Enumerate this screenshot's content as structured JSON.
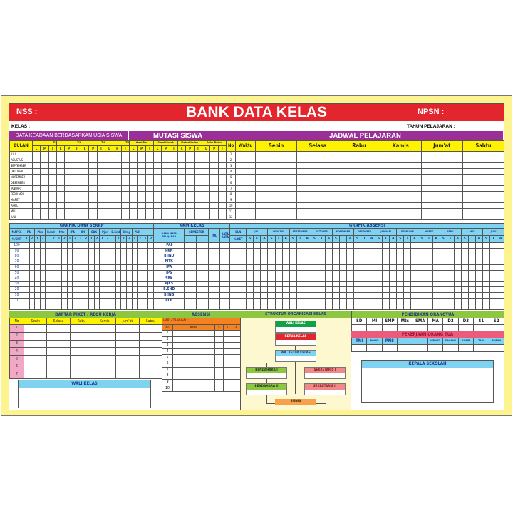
{
  "header": {
    "title": "BANK DATA KELAS",
    "nss_label": "NSS :",
    "npsn_label": "NPSN :",
    "kelas_label": "KELAS :",
    "tahun_label": "TAHUN PELAJARAN :"
  },
  "sections": {
    "usia": "DATA KEADAAN BERDASARKAN USIA SISWA",
    "mutasi": "MUTASI SISWA",
    "jadwal": "JADWAL PELAJARAN"
  },
  "usia_table": {
    "bulan_label": "BULAN",
    "groups": [
      "TH",
      "TH",
      "TH",
      "TH",
      "Awal Bln",
      "Mulai Masuk",
      "Mutasi Keluar",
      "Akhir Bulan"
    ],
    "sub": [
      "L",
      "P",
      "J"
    ],
    "months": [
      "JULI",
      "AGUSTUS",
      "SEPTEMBER",
      "OKTOBER",
      "NOPEMBER",
      "DESEMBER",
      "JANUARI",
      "FEBRUARI",
      "MARET",
      "APRIL",
      "MEI",
      "JUNI"
    ]
  },
  "jadwal": {
    "no_label": "No",
    "waktu_label": "Waktu",
    "days": [
      "Senin",
      "Selasa",
      "Rabu",
      "Kamis",
      "Jum'at",
      "Sabtu"
    ],
    "rows": [
      "1",
      "2",
      "3",
      "4",
      "5",
      "6",
      "7",
      "8",
      "9",
      "10",
      "11",
      "12"
    ]
  },
  "daya_serap": {
    "title": "GRAFIK DAYA SERAP",
    "mapel_label": "MAPEL",
    "smt_label": "%/SMT",
    "subjects": [
      "PAI",
      "Pkn",
      "B.Ind",
      "Mtk",
      "IPA",
      "IPS",
      "SBK",
      "Pjkr",
      "B.Snd",
      "B.Ing",
      "PLH",
      ""
    ],
    "sem": [
      "1",
      "2"
    ],
    "levels": [
      "100",
      "90",
      "80",
      "70",
      "60",
      "50",
      "40",
      "30",
      "20",
      "10",
      "0",
      ""
    ]
  },
  "kkm": {
    "title": "KKM KELAS",
    "nama_label": "NAMA MATA PELAJARAN",
    "semester_label": "SEMESTER",
    "jml_label": "JML",
    "rata_label": "RATA RATA",
    "subjects": [
      "PAI",
      "PKN",
      "B.IND",
      "MTK",
      "IPA",
      "IPS",
      "SBK",
      "PJKS",
      "B.SND",
      "B.ING",
      "PLH",
      ""
    ]
  },
  "absensi_grafik": {
    "title": "GRAFIK ABSENSI",
    "bln_label": "BLN",
    "ket_label": "%/KET",
    "months": [
      "JULI",
      "AGUSTUS",
      "SEPTEMBER",
      "OKTOBER",
      "NOPEMBER",
      "DESEMBER",
      "JANUARI",
      "FEBRUARI",
      "MARET",
      "APRIL",
      "MEI",
      "JUNI"
    ],
    "sub": [
      "S",
      "I",
      "A"
    ]
  },
  "piket": {
    "title": "DAFTAR PIKET / REGU KERJA",
    "no_label": "No",
    "days": [
      "Senin",
      "Selasa",
      "Rabu",
      "Kamis",
      "Jum'at",
      "Sabtu"
    ],
    "rows": [
      "1",
      "2",
      "3",
      "4",
      "5",
      "6",
      "7"
    ]
  },
  "wali_kelas_box": "WALI KELAS",
  "absensi": {
    "title": "ABSENSI",
    "hari_label": "HARI / TANGGAL :",
    "no_label": "No",
    "nama_label": "NAMA",
    "cols": [
      "S",
      "I",
      "A"
    ],
    "rows": [
      "1",
      "2",
      "3",
      "4",
      "5",
      "6",
      "7",
      "8",
      "9",
      "10"
    ]
  },
  "struktur": {
    "title": "STRUKTUR ORGANISASI KELAS",
    "wali": "WALI KELAS",
    "ketua": "KETUA KELAS",
    "wakil": "WK. KETUA KELAS",
    "bendahara1": "BENDAHARA I",
    "sekretaris1": "SEKRETARIS I",
    "bendahara2": "BENDAHARA II",
    "sekretaris2": "SEKRETARIS II",
    "siswa": "SISWA"
  },
  "pendidikan": {
    "title": "PENDIDIKAN ORANGTUA",
    "levels": [
      "SD",
      "MI",
      "SMP",
      "Mts",
      "SMA",
      "MA",
      "D2",
      "D3",
      "S1",
      "S2"
    ]
  },
  "pekerjaan": {
    "title": "PEKERJAAN ORANG TUA",
    "jobs": [
      "TNI",
      "POLISI",
      "PNS",
      "",
      "",
      "WRWST",
      "DAGANG",
      "SOPIR",
      "TANI",
      "BURUH"
    ]
  },
  "kepala_sekolah": "KEPALA SEKOLAH",
  "colors": {
    "board": "#fdf38f",
    "red": "#e3262e",
    "purple": "#9a2f98",
    "yellow": "#fff200",
    "blue": "#7fd3f0",
    "green": "#8dc63f",
    "orange": "#f58220",
    "pink": "#f3a7c6"
  }
}
